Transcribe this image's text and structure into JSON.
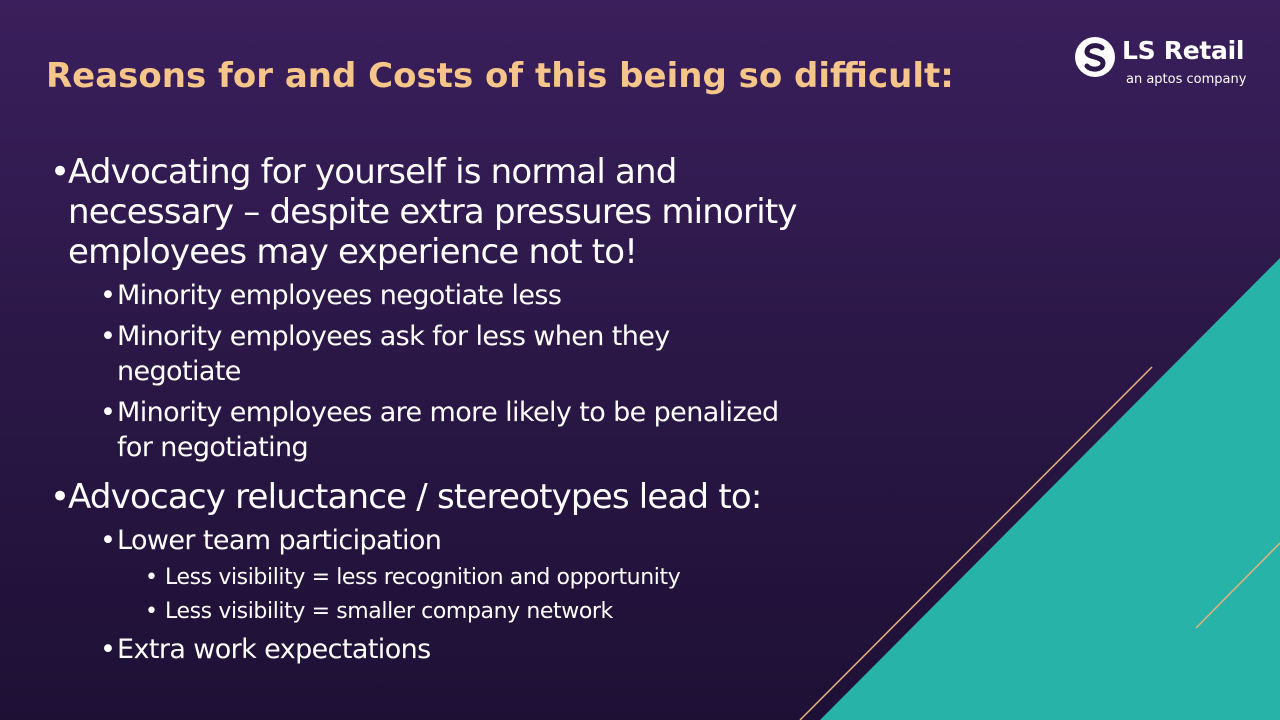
{
  "slide": {
    "title": "Reasons for and Costs of this being so difficult:",
    "colors": {
      "background": "#2c1848",
      "title": "#f5c58a",
      "accent": "#27b3a8",
      "accent_line": "#e9b27a",
      "text": "#ffffff"
    }
  },
  "logo": {
    "icon": "ls-retail-logo-icon",
    "name": "LS Retail",
    "tagline": "an aptos company"
  },
  "bullets": {
    "item1": {
      "line1": "Advocating for yourself is normal and",
      "line2": "necessary – despite extra pressures minority",
      "line3": "employees may experience not to!",
      "sub1": "Minority employees negotiate less",
      "sub2_line1": "Minority employees ask for less when they",
      "sub2_line2": "negotiate",
      "sub3_line1": "Minority employees are more likely to be penalized",
      "sub3_line2": "for negotiating"
    },
    "item2": {
      "text": "Advocacy reluctance / stereotypes lead to:",
      "sub1": "Lower team participation",
      "sub1_sub1": "Less visibility = less recognition and opportunity",
      "sub1_sub2": "Less visibility = smaller company network",
      "sub2": "Extra work expectations"
    }
  }
}
